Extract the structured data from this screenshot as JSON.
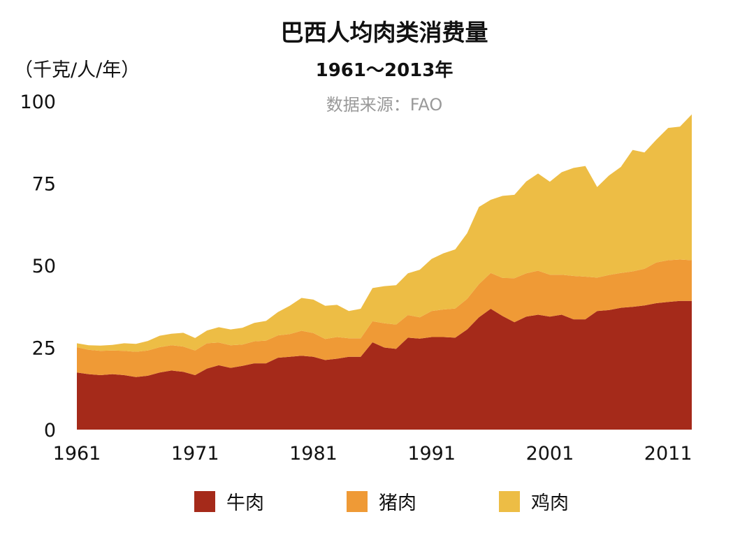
{
  "title": "巴西人均肉类消费量",
  "subtitle": "1961～2013年",
  "source": "数据来源：FAO",
  "unit": "（千克/人/年）",
  "colors": {
    "beef": "#a52a1a",
    "pork": "#ef9a36",
    "chicken": "#edbd45"
  },
  "legend": [
    {
      "label": "牛肉",
      "color": "#a52a1a"
    },
    {
      "label": "猪肉",
      "color": "#ef9a36"
    },
    {
      "label": "鸡肉",
      "color": "#edbd45"
    }
  ],
  "chart_data": {
    "type": "area",
    "stacked": true,
    "title": "巴西人均肉类消费量",
    "subtitle": "1961～2013年",
    "ylabel": "（千克/人/年）",
    "xlim": [
      1961,
      2013
    ],
    "ylim": [
      0,
      100
    ],
    "x_ticks": [
      1961,
      1971,
      1981,
      1991,
      2001,
      2011
    ],
    "y_ticks": [
      0,
      25,
      50,
      75,
      100
    ],
    "grid": false,
    "legend_position": "bottom",
    "x": [
      1961,
      1962,
      1963,
      1964,
      1965,
      1966,
      1967,
      1968,
      1969,
      1970,
      1971,
      1972,
      1973,
      1974,
      1975,
      1976,
      1977,
      1978,
      1979,
      1980,
      1981,
      1982,
      1983,
      1984,
      1985,
      1986,
      1987,
      1988,
      1989,
      1990,
      1991,
      1992,
      1993,
      1994,
      1995,
      1996,
      1997,
      1998,
      1999,
      2000,
      2001,
      2002,
      2003,
      2004,
      2005,
      2006,
      2007,
      2008,
      2009,
      2010,
      2011,
      2012,
      2013
    ],
    "series": [
      {
        "name": "牛肉",
        "color": "#a52a1a",
        "values": [
          17.4,
          16.9,
          16.6,
          16.9,
          16.6,
          16.0,
          16.4,
          17.4,
          18.0,
          17.6,
          16.6,
          18.6,
          19.6,
          18.8,
          19.4,
          20.2,
          20.2,
          21.9,
          22.2,
          22.5,
          22.2,
          21.2,
          21.6,
          22.2,
          22.2,
          26.6,
          25.0,
          24.6,
          28.0,
          27.7,
          28.2,
          28.2,
          28.0,
          30.5,
          34.2,
          36.8,
          34.6,
          32.7,
          34.4,
          35.0,
          34.4,
          35.0,
          33.6,
          33.6,
          36.1,
          36.4,
          37.1,
          37.4,
          37.8,
          38.5,
          38.9,
          39.2,
          39.2
        ]
      },
      {
        "name": "猪肉",
        "color": "#ef9a36",
        "values": [
          7.7,
          7.4,
          7.4,
          7.2,
          7.4,
          7.7,
          7.7,
          7.7,
          7.7,
          7.7,
          7.5,
          7.7,
          6.9,
          6.9,
          6.5,
          6.7,
          6.9,
          6.8,
          6.9,
          7.6,
          7.2,
          6.4,
          6.6,
          5.6,
          5.6,
          6.4,
          7.4,
          7.4,
          6.9,
          6.5,
          7.9,
          8.4,
          8.9,
          9.3,
          10.1,
          10.9,
          11.6,
          13.4,
          13.2,
          13.4,
          12.8,
          12.2,
          13.2,
          13.0,
          10.2,
          10.7,
          10.6,
          10.8,
          11.2,
          12.4,
          12.7,
          12.6,
          12.4
        ]
      },
      {
        "name": "鸡肉",
        "color": "#edbd45",
        "values": [
          1.2,
          1.4,
          1.6,
          1.7,
          2.3,
          2.4,
          2.9,
          3.5,
          3.5,
          4.2,
          3.8,
          3.9,
          4.7,
          4.8,
          5.1,
          5.6,
          6.0,
          7.1,
          8.6,
          10.0,
          10.2,
          10.1,
          9.8,
          8.3,
          9.0,
          10.1,
          11.3,
          12.0,
          12.7,
          14.5,
          15.9,
          17.1,
          18.0,
          20.0,
          23.5,
          22.3,
          25.0,
          25.4,
          28.0,
          29.6,
          28.3,
          31.2,
          32.9,
          33.7,
          27.6,
          30.3,
          32.3,
          37.0,
          35.4,
          37.4,
          40.3,
          40.5,
          44.4
        ]
      }
    ]
  }
}
